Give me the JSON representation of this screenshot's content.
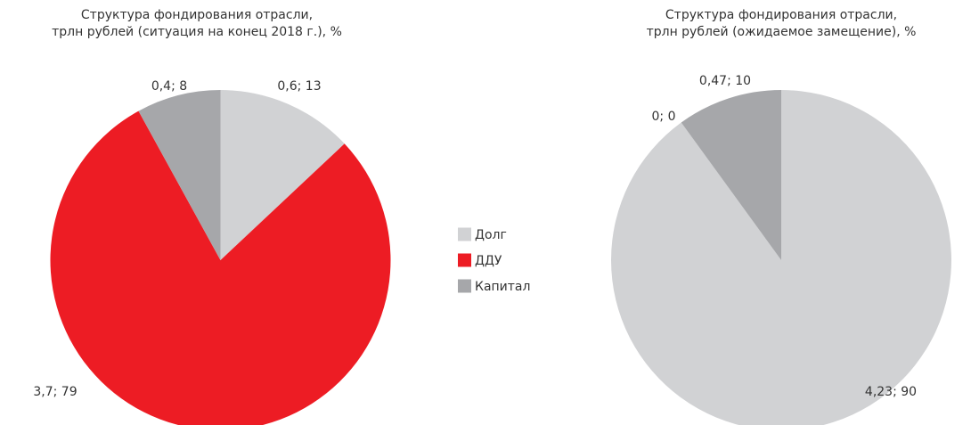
{
  "legend": [
    {
      "name": "Долг",
      "color": "#d1d2d4"
    },
    {
      "name": "ДДУ",
      "color": "#ed1c24"
    },
    {
      "name": "Капитал",
      "color": "#a6a7aa"
    }
  ],
  "chart_data": [
    {
      "type": "pie",
      "title": [
        "Структура фондирования отрасли,",
        "трлн рублей (ситуация на конец 2018 г.), %"
      ],
      "values": [
        13,
        79,
        8
      ],
      "value_labels": [
        "0,6; 13",
        "3,7; 79",
        "0,4; 8"
      ]
    },
    {
      "type": "pie",
      "title": [
        "Структура фондирования отрасли,",
        "трлн рублей (ожидаемое замещение), %"
      ],
      "values": [
        90,
        0,
        10
      ],
      "value_labels": [
        "4,23; 90",
        "0; 0",
        "0,47; 10"
      ]
    }
  ]
}
